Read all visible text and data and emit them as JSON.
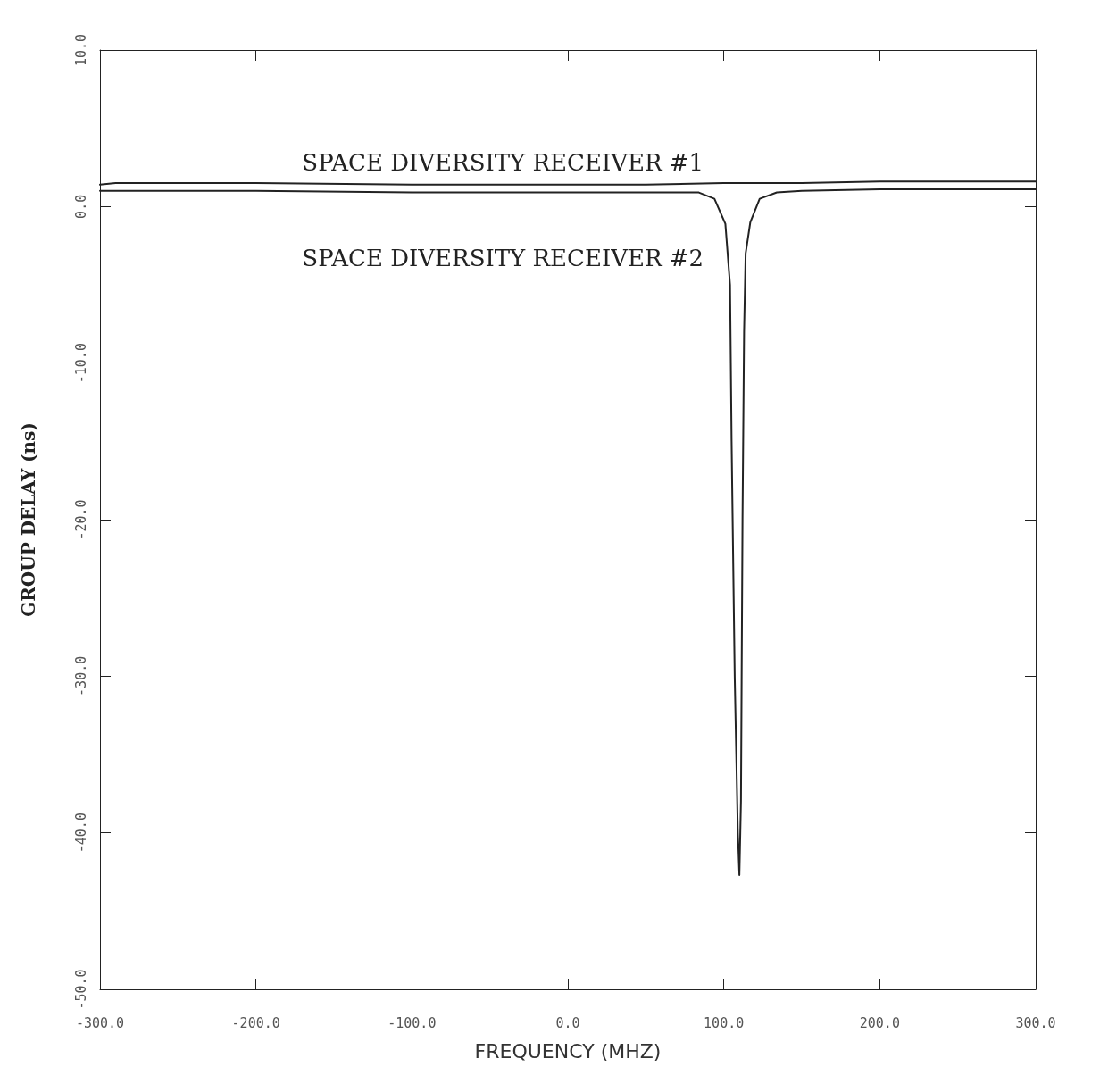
{
  "chart_data": {
    "type": "line",
    "xlabel": "FREQUENCY (MHZ)",
    "ylabel": "GROUP DELAY (ns)",
    "xlim": [
      -300,
      300
    ],
    "ylim": [
      -50,
      10
    ],
    "xticks": [
      {
        "value": -300,
        "label": "-300.0"
      },
      {
        "value": -200,
        "label": "-200.0"
      },
      {
        "value": -100,
        "label": "-100.0"
      },
      {
        "value": 0,
        "label": "0.0"
      },
      {
        "value": 100,
        "label": "100.0"
      },
      {
        "value": 200,
        "label": "200.0"
      },
      {
        "value": 300,
        "label": "300.0"
      }
    ],
    "yticks": [
      {
        "value": -50,
        "label": "-50.0"
      },
      {
        "value": -40,
        "label": "-40.0"
      },
      {
        "value": -30,
        "label": "-30.0"
      },
      {
        "value": -20,
        "label": "-20.0"
      },
      {
        "value": -10,
        "label": "-10.0"
      },
      {
        "value": 0,
        "label": "0.0"
      },
      {
        "value": 10,
        "label": "10.0"
      }
    ],
    "grid": false,
    "legend": false,
    "marker": "none",
    "line_style": "solid",
    "series": [
      {
        "name": "SPACE DIVERSITY RECEIVER #1",
        "color": "#222222",
        "x": [
          -300,
          -290,
          -200,
          -100,
          0,
          50,
          100,
          150,
          200,
          260,
          300
        ],
        "values": [
          1.4,
          1.5,
          1.5,
          1.4,
          1.4,
          1.4,
          1.5,
          1.5,
          1.6,
          1.6,
          1.6
        ]
      },
      {
        "name": "SPACE DIVERSITY RECEIVER #2",
        "color": "#222222",
        "x": [
          -300,
          -200,
          -100,
          0,
          50,
          84,
          94,
          101,
          104,
          105,
          107,
          109,
          110,
          111,
          112,
          113,
          114,
          117,
          123,
          134,
          150,
          200,
          300
        ],
        "values": [
          1.0,
          1.0,
          0.9,
          0.9,
          0.9,
          0.9,
          0.5,
          -1.1,
          -5,
          -15,
          -30,
          -40,
          -42.7,
          -38,
          -20,
          -8,
          -3,
          -1,
          0.5,
          0.9,
          1.0,
          1.1,
          1.1
        ]
      }
    ]
  }
}
